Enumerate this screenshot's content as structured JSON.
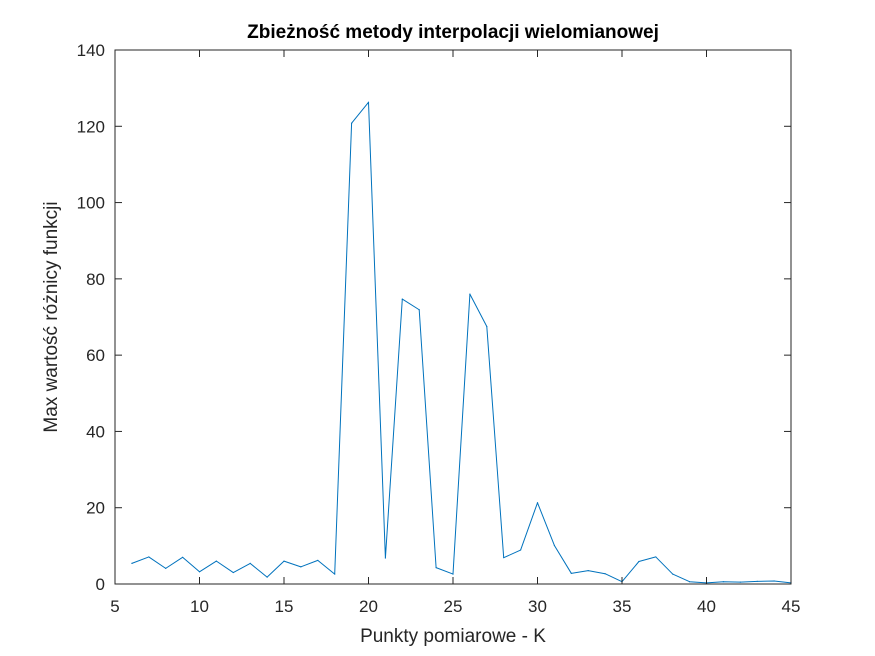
{
  "chart_data": {
    "type": "line",
    "title": "Zbieżność metody interpolacji wielomianowej",
    "xlabel": "Punkty pomiarowe - K",
    "ylabel": "Max wartość różnicy funkcji",
    "xlim": [
      5,
      45
    ],
    "ylim": [
      0,
      140
    ],
    "xticks": [
      5,
      10,
      15,
      20,
      25,
      30,
      35,
      40,
      45
    ],
    "yticks": [
      0,
      20,
      40,
      60,
      80,
      100,
      120,
      140
    ],
    "grid": false,
    "legend": "none",
    "series": [
      {
        "color": "#0072BD",
        "x": [
          6,
          7,
          8,
          9,
          10,
          11,
          12,
          13,
          14,
          15,
          16,
          17,
          18,
          19,
          20,
          21,
          22,
          23,
          24,
          25,
          26,
          27,
          28,
          29,
          30,
          31,
          32,
          33,
          34,
          35,
          36,
          37,
          38,
          39,
          40,
          41,
          42,
          43,
          44,
          45
        ],
        "y": [
          5.4,
          7.1,
          4.1,
          7.0,
          3.2,
          6.0,
          3.0,
          5.4,
          1.8,
          6.0,
          4.5,
          6.2,
          2.6,
          120.8,
          126.3,
          6.8,
          74.7,
          71.9,
          4.3,
          2.6,
          76.0,
          67.5,
          6.9,
          8.9,
          21.3,
          10.1,
          2.8,
          3.5,
          2.7,
          0.6,
          5.9,
          7.1,
          2.6,
          0.6,
          0.3,
          0.6,
          0.5,
          0.7,
          0.8,
          0.3
        ]
      }
    ]
  }
}
